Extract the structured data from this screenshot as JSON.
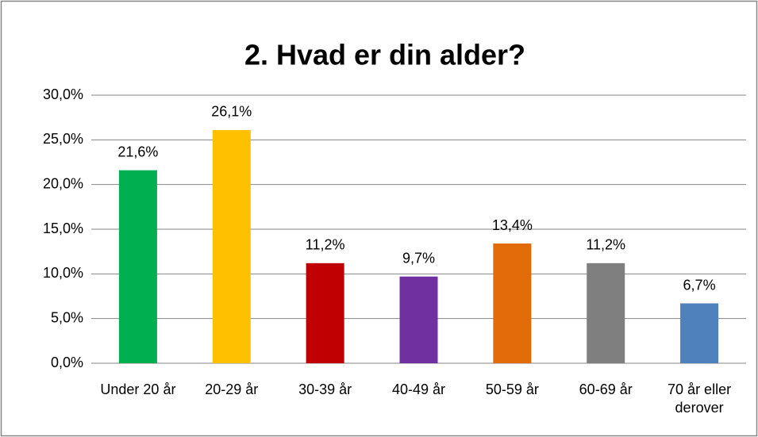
{
  "chart_data": {
    "type": "bar",
    "title": "2. Hvad er din alder?",
    "categories": [
      "Under 20 år",
      "20-29 år",
      "30-39 år",
      "40-49 år",
      "50-59 år",
      "60-69 år",
      "70 år eller derover"
    ],
    "values": [
      21.6,
      26.1,
      11.2,
      9.7,
      13.4,
      11.2,
      6.7
    ],
    "value_labels": [
      "21,6%",
      "26,1%",
      "11,2%",
      "9,7%",
      "13,4%",
      "11,2%",
      "6,7%"
    ],
    "colors": [
      "#00b050",
      "#ffc000",
      "#c00000",
      "#7030a0",
      "#e36c0a",
      "#7f7f7f",
      "#4f81bd"
    ],
    "ylim": [
      0,
      30
    ],
    "yticks": [
      {
        "value": 0,
        "label": "0,0%"
      },
      {
        "value": 5,
        "label": "5,0%"
      },
      {
        "value": 10,
        "label": "10,0%"
      },
      {
        "value": 15,
        "label": "15,0%"
      },
      {
        "value": 20,
        "label": "20,0%"
      },
      {
        "value": 25,
        "label": "25,0%"
      },
      {
        "value": 30,
        "label": "30,0%"
      }
    ],
    "grid": true
  }
}
